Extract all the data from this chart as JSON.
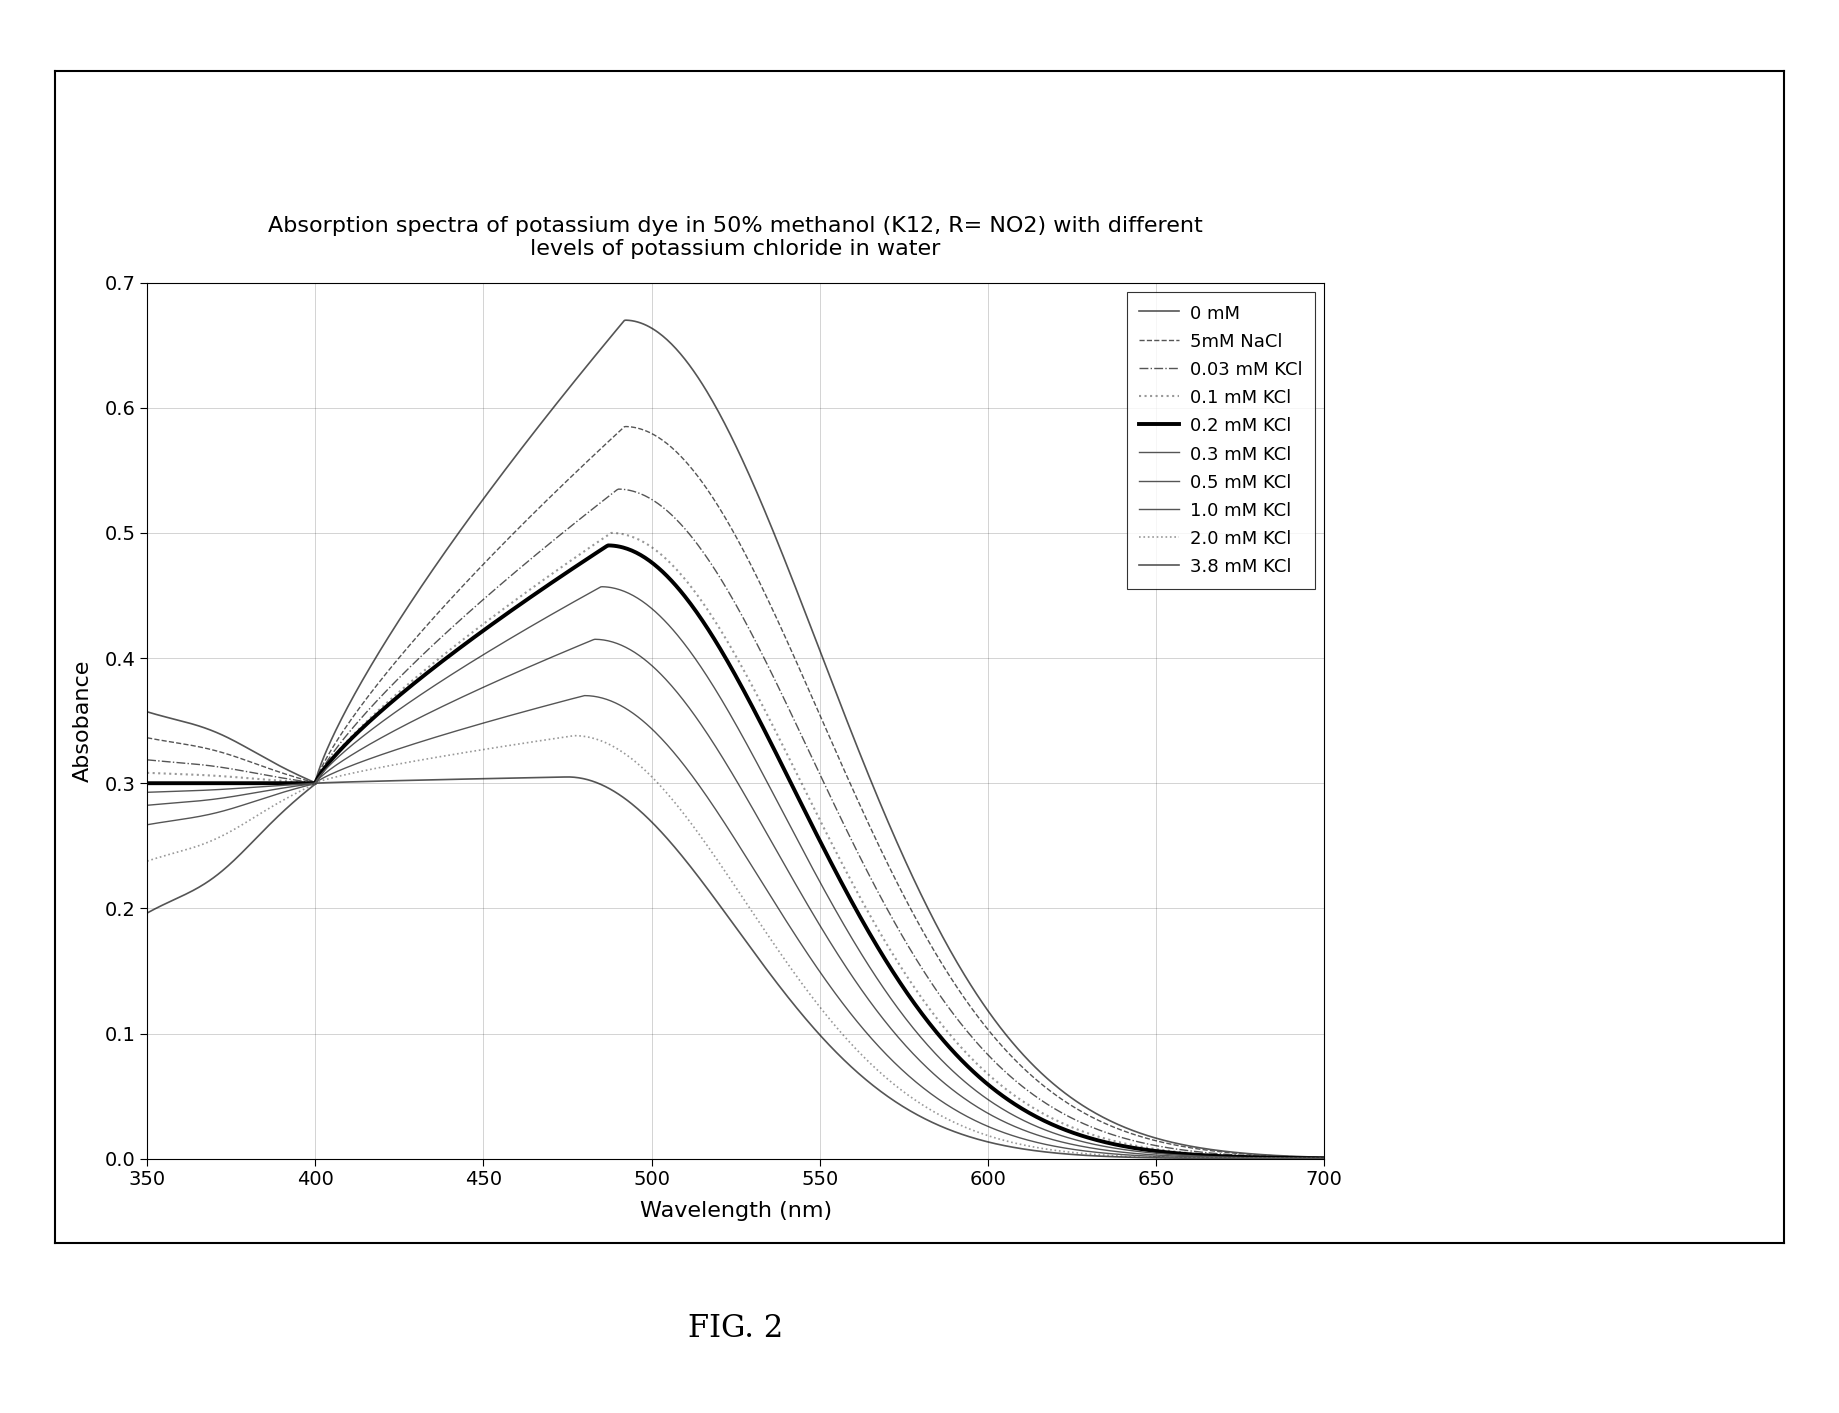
{
  "title_line1": "Absorption spectra of potassium dye in 50% methanol (K12, R= NO2) with different",
  "title_line2": "levels of potassium chloride in water",
  "xlabel": "Wavelength (nm)",
  "ylabel_text": "Absobance",
  "xlim": [
    350,
    700
  ],
  "ylim": [
    0,
    0.7
  ],
  "yticks": [
    0,
    0.1,
    0.2,
    0.3,
    0.4,
    0.5,
    0.6,
    0.7
  ],
  "xticks": [
    350,
    400,
    450,
    500,
    550,
    600,
    650,
    700
  ],
  "fig_label": "FIG. 2",
  "peak_params": [
    {
      "label": "0 mM",
      "peak": 0.67,
      "peak_wl": 492,
      "val350": 0.355,
      "val400": 0.3,
      "sigma": 58
    },
    {
      "label": "5mM NaCl",
      "peak": 0.585,
      "peak_wl": 492,
      "val350": 0.335,
      "val400": 0.3,
      "sigma": 58
    },
    {
      "label": "0.03 mM KCl",
      "peak": 0.535,
      "peak_wl": 490,
      "val350": 0.318,
      "val400": 0.3,
      "sigma": 57
    },
    {
      "label": "0.1 mM KCl",
      "peak": 0.5,
      "peak_wl": 488,
      "val350": 0.308,
      "val400": 0.3,
      "sigma": 56
    },
    {
      "label": "0.2 mM KCl",
      "peak": 0.49,
      "peak_wl": 487,
      "val350": 0.3,
      "val400": 0.3,
      "sigma": 55
    },
    {
      "label": "0.3 mM KCl",
      "peak": 0.457,
      "peak_wl": 485,
      "val350": 0.293,
      "val400": 0.3,
      "sigma": 54
    },
    {
      "label": "0.5 mM KCl",
      "peak": 0.415,
      "peak_wl": 483,
      "val350": 0.283,
      "val400": 0.3,
      "sigma": 53
    },
    {
      "label": "1.0 mM KCl",
      "peak": 0.37,
      "peak_wl": 480,
      "val350": 0.268,
      "val400": 0.3,
      "sigma": 52
    },
    {
      "label": "2.0 mM KCl",
      "peak": 0.338,
      "peak_wl": 477,
      "val350": 0.24,
      "val400": 0.3,
      "sigma": 51
    },
    {
      "label": "3.8 mM KCl",
      "peak": 0.305,
      "peak_wl": 475,
      "val350": 0.2,
      "val400": 0.3,
      "sigma": 50
    }
  ],
  "line_styles": [
    {
      "ls": "-",
      "color": "#555555",
      "lw": 1.2
    },
    {
      "ls": "--",
      "color": "#555555",
      "lw": 1.0
    },
    {
      "ls": "-.",
      "color": "#555555",
      "lw": 1.0
    },
    {
      "ls": ":",
      "color": "#999999",
      "lw": 1.5
    },
    {
      "ls": "-",
      "color": "#000000",
      "lw": 2.8
    },
    {
      "ls": "-",
      "color": "#555555",
      "lw": 1.0
    },
    {
      "ls": "-",
      "color": "#555555",
      "lw": 1.0
    },
    {
      "ls": "-",
      "color": "#555555",
      "lw": 1.0
    },
    {
      "ls": ":",
      "color": "#999999",
      "lw": 1.2
    },
    {
      "ls": "-",
      "color": "#555555",
      "lw": 1.2
    }
  ],
  "background_color": "#ffffff",
  "border_color": "#000000"
}
